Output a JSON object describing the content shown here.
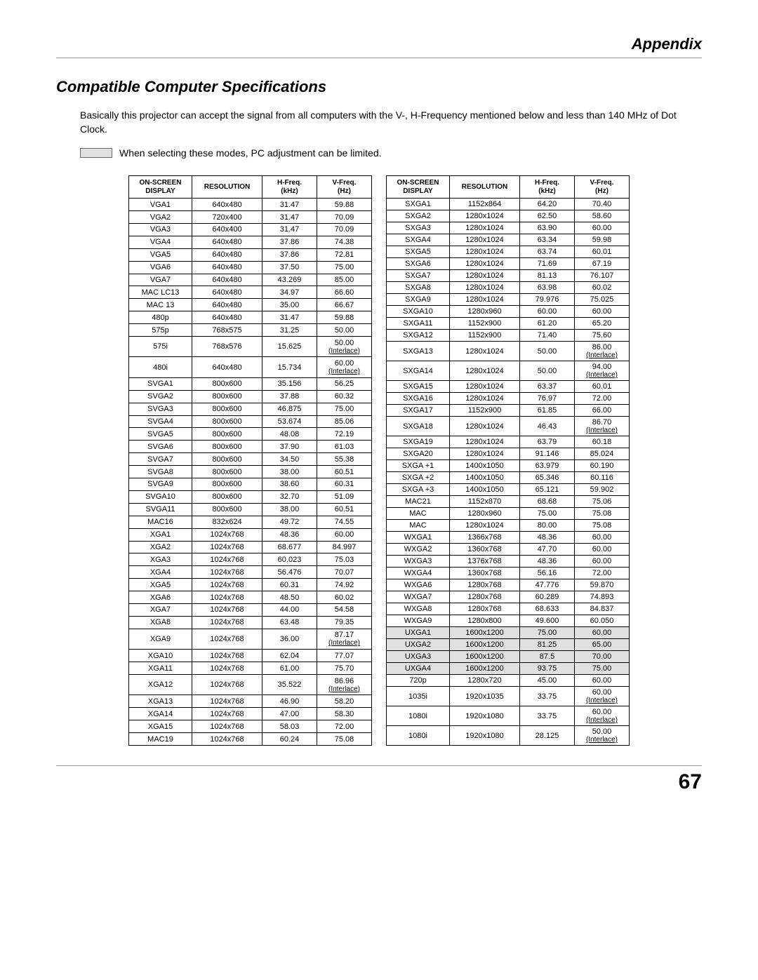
{
  "header": {
    "appendix": "Appendix"
  },
  "section": {
    "title": "Compatible Computer Specifications",
    "intro": "Basically this projector can accept the signal from all computers with the V-, H-Frequency mentioned below and less than 140 MHz of Dot Clock.",
    "note": "When selecting these modes, PC adjustment can be limited."
  },
  "columns": [
    {
      "line1": "ON-SCREEN",
      "line2": "DISPLAY"
    },
    {
      "line1": "RESOLUTION",
      "line2": ""
    },
    {
      "line1": "H-Freq.",
      "line2": "(kHz)"
    },
    {
      "line1": "V-Freq.",
      "line2": "(Hz)"
    }
  ],
  "left_rows": [
    {
      "d": "VGA1",
      "r": "640x480",
      "h": "31.47",
      "v": "59.88"
    },
    {
      "d": "VGA2",
      "r": "720x400",
      "h": "31.47",
      "v": "70.09"
    },
    {
      "d": "VGA3",
      "r": "640x400",
      "h": "31.47",
      "v": "70.09"
    },
    {
      "d": "VGA4",
      "r": "640x480",
      "h": "37.86",
      "v": "74.38"
    },
    {
      "d": "VGA5",
      "r": "640x480",
      "h": "37.86",
      "v": "72.81"
    },
    {
      "d": "VGA6",
      "r": "640x480",
      "h": "37.50",
      "v": "75.00"
    },
    {
      "d": "VGA7",
      "r": "640x480",
      "h": "43.269",
      "v": "85.00"
    },
    {
      "d": "MAC LC13",
      "r": "640x480",
      "h": "34.97",
      "v": "66.60"
    },
    {
      "d": "MAC 13",
      "r": "640x480",
      "h": "35.00",
      "v": "66.67"
    },
    {
      "d": "480p",
      "r": "640x480",
      "h": "31.47",
      "v": "59.88"
    },
    {
      "d": "575p",
      "r": "768x575",
      "h": "31.25",
      "v": "50.00"
    },
    {
      "d": "575i",
      "r": "768x576",
      "h": "15.625",
      "v": "50.00",
      "vsub": "(Interlace)"
    },
    {
      "d": "480i",
      "r": "640x480",
      "h": "15.734",
      "v": "60.00",
      "vsub": "(Interlace)"
    },
    {
      "d": "SVGA1",
      "r": "800x600",
      "h": "35.156",
      "v": "56.25"
    },
    {
      "d": "SVGA2",
      "r": "800x600",
      "h": "37.88",
      "v": "60.32"
    },
    {
      "d": "SVGA3",
      "r": "800x600",
      "h": "46.875",
      "v": "75.00"
    },
    {
      "d": "SVGA4",
      "r": "800x600",
      "h": "53.674",
      "v": "85.06"
    },
    {
      "d": "SVGA5",
      "r": "800x600",
      "h": "48.08",
      "v": "72.19"
    },
    {
      "d": "SVGA6",
      "r": "800x600",
      "h": "37.90",
      "v": "61.03"
    },
    {
      "d": "SVGA7",
      "r": "800x600",
      "h": "34.50",
      "v": "55.38"
    },
    {
      "d": "SVGA8",
      "r": "800x600",
      "h": "38.00",
      "v": "60.51"
    },
    {
      "d": "SVGA9",
      "r": "800x600",
      "h": "38.60",
      "v": "60.31"
    },
    {
      "d": "SVGA10",
      "r": "800x600",
      "h": "32.70",
      "v": "51.09"
    },
    {
      "d": "SVGA11",
      "r": "800x600",
      "h": "38.00",
      "v": "60.51"
    },
    {
      "d": "MAC16",
      "r": "832x624",
      "h": "49.72",
      "v": "74.55"
    },
    {
      "d": "XGA1",
      "r": "1024x768",
      "h": "48.36",
      "v": "60.00"
    },
    {
      "d": "XGA2",
      "r": "1024x768",
      "h": "68.677",
      "v": "84.997"
    },
    {
      "d": "XGA3",
      "r": "1024x768",
      "h": "60.023",
      "v": "75.03"
    },
    {
      "d": "XGA4",
      "r": "1024x768",
      "h": "56.476",
      "v": "70.07"
    },
    {
      "d": "XGA5",
      "r": "1024x768",
      "h": "60.31",
      "v": "74.92"
    },
    {
      "d": "XGA6",
      "r": "1024x768",
      "h": "48.50",
      "v": "60.02"
    },
    {
      "d": "XGA7",
      "r": "1024x768",
      "h": "44.00",
      "v": "54.58"
    },
    {
      "d": "XGA8",
      "r": "1024x768",
      "h": "63.48",
      "v": "79.35"
    },
    {
      "d": "XGA9",
      "r": "1024x768",
      "h": "36.00",
      "v": "87.17",
      "vsub": "(Interlace)"
    },
    {
      "d": "XGA10",
      "r": "1024x768",
      "h": "62.04",
      "v": "77.07"
    },
    {
      "d": "XGA11",
      "r": "1024x768",
      "h": "61.00",
      "v": "75.70"
    },
    {
      "d": "XGA12",
      "r": "1024x768",
      "h": "35.522",
      "v": "86.96",
      "vsub": "(Interlace)"
    },
    {
      "d": "XGA13",
      "r": "1024x768",
      "h": "46.90",
      "v": "58.20"
    },
    {
      "d": "XGA14",
      "r": "1024x768",
      "h": "47.00",
      "v": "58.30"
    },
    {
      "d": "XGA15",
      "r": "1024x768",
      "h": "58.03",
      "v": "72.00"
    },
    {
      "d": "MAC19",
      "r": "1024x768",
      "h": "60.24",
      "v": "75.08"
    }
  ],
  "right_rows": [
    {
      "d": "SXGA1",
      "r": "1152x864",
      "h": "64.20",
      "v": "70.40"
    },
    {
      "d": "SXGA2",
      "r": "1280x1024",
      "h": "62.50",
      "v": "58.60"
    },
    {
      "d": "SXGA3",
      "r": "1280x1024",
      "h": "63.90",
      "v": "60.00"
    },
    {
      "d": "SXGA4",
      "r": "1280x1024",
      "h": "63.34",
      "v": "59.98"
    },
    {
      "d": "SXGA5",
      "r": "1280x1024",
      "h": "63.74",
      "v": "60.01"
    },
    {
      "d": "SXGA6",
      "r": "1280x1024",
      "h": "71.69",
      "v": "67.19"
    },
    {
      "d": "SXGA7",
      "r": "1280x1024",
      "h": "81.13",
      "v": "76.107"
    },
    {
      "d": "SXGA8",
      "r": "1280x1024",
      "h": "63.98",
      "v": "60.02"
    },
    {
      "d": "SXGA9",
      "r": "1280x1024",
      "h": "79.976",
      "v": "75.025"
    },
    {
      "d": "SXGA10",
      "r": "1280x960",
      "h": "60.00",
      "v": "60.00"
    },
    {
      "d": "SXGA11",
      "r": "1152x900",
      "h": "61.20",
      "v": "65.20"
    },
    {
      "d": "SXGA12",
      "r": "1152x900",
      "h": "71.40",
      "v": "75.60"
    },
    {
      "d": "SXGA13",
      "r": "1280x1024",
      "h": "50.00",
      "v": "86.00",
      "vsub": "(Interlace)"
    },
    {
      "d": "SXGA14",
      "r": "1280x1024",
      "h": "50.00",
      "v": "94.00",
      "vsub": "(Interlace)"
    },
    {
      "d": "SXGA15",
      "r": "1280x1024",
      "h": "63.37",
      "v": "60.01"
    },
    {
      "d": "SXGA16",
      "r": "1280x1024",
      "h": "76.97",
      "v": "72.00"
    },
    {
      "d": "SXGA17",
      "r": "1152x900",
      "h": "61.85",
      "v": "66.00"
    },
    {
      "d": "SXGA18",
      "r": "1280x1024",
      "h": "46.43",
      "v": "86.70",
      "vsub": "(Interlace)"
    },
    {
      "d": "SXGA19",
      "r": "1280x1024",
      "h": "63.79",
      "v": "60.18"
    },
    {
      "d": "SXGA20",
      "r": "1280x1024",
      "h": "91.146",
      "v": "85.024"
    },
    {
      "d": "SXGA +1",
      "r": "1400x1050",
      "h": "63.979",
      "v": "60.190"
    },
    {
      "d": "SXGA +2",
      "r": "1400x1050",
      "h": "65.346",
      "v": "60.116"
    },
    {
      "d": "SXGA +3",
      "r": "1400x1050",
      "h": "65.121",
      "v": "59.902"
    },
    {
      "d": "MAC21",
      "r": "1152x870",
      "h": "68.68",
      "v": "75.06"
    },
    {
      "d": "MAC",
      "r": "1280x960",
      "h": "75.00",
      "v": "75.08"
    },
    {
      "d": "MAC",
      "r": "1280x1024",
      "h": "80.00",
      "v": "75.08"
    },
    {
      "d": "WXGA1",
      "r": "1366x768",
      "h": "48.36",
      "v": "60.00"
    },
    {
      "d": "WXGA2",
      "r": "1360x768",
      "h": "47.70",
      "v": "60.00"
    },
    {
      "d": "WXGA3",
      "r": "1376x768",
      "h": "48.36",
      "v": "60.00"
    },
    {
      "d": "WXGA4",
      "r": "1360x768",
      "h": "56.16",
      "v": "72.00"
    },
    {
      "d": "WXGA6",
      "r": "1280x768",
      "h": "47.776",
      "v": "59.870"
    },
    {
      "d": "WXGA7",
      "r": "1280x768",
      "h": "60.289",
      "v": "74.893"
    },
    {
      "d": "WXGA8",
      "r": "1280x768",
      "h": "68.633",
      "v": "84.837"
    },
    {
      "d": "WXGA9",
      "r": "1280x800",
      "h": "49.600",
      "v": "60.050"
    },
    {
      "d": "UXGA1",
      "r": "1600x1200",
      "h": "75.00",
      "v": "60.00",
      "hl": true
    },
    {
      "d": "UXGA2",
      "r": "1600x1200",
      "h": "81.25",
      "v": "65.00",
      "hl": true
    },
    {
      "d": "UXGA3",
      "r": "1600x1200",
      "h": "87.5",
      "v": "70.00",
      "hl": true
    },
    {
      "d": "UXGA4",
      "r": "1600x1200",
      "h": "93.75",
      "v": "75.00",
      "hl": true
    },
    {
      "d": "720p",
      "r": "1280x720",
      "h": "45.00",
      "v": "60.00"
    },
    {
      "d": "1035i",
      "r": "1920x1035",
      "h": "33.75",
      "v": "60.00",
      "vsub": "(Interlace)"
    },
    {
      "d": "1080i",
      "r": "1920x1080",
      "h": "33.75",
      "v": "60.00",
      "vsub": "(Interlace)"
    },
    {
      "d": "1080i",
      "r": "1920x1080",
      "h": "28.125",
      "v": "50.00",
      "vsub": "(Interlace)"
    }
  ],
  "footer": {
    "page": "67"
  },
  "colors": {
    "highlight": "#e0e0e0",
    "rule": "#999999"
  }
}
